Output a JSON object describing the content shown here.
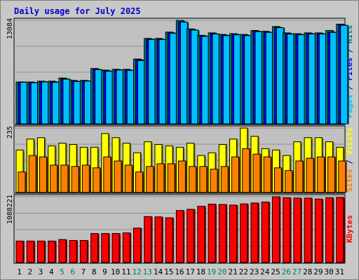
{
  "chart_data": {
    "type": "bar",
    "title": "Daily usage for July 2025",
    "categories": [
      "1",
      "2",
      "3",
      "4",
      "5",
      "6",
      "7",
      "8",
      "9",
      "10",
      "11",
      "12",
      "13",
      "14",
      "15",
      "16",
      "17",
      "18",
      "19",
      "20",
      "21",
      "22",
      "23",
      "24",
      "25",
      "26",
      "27",
      "28",
      "29",
      "30",
      "31"
    ],
    "weekend_days": [
      "5",
      "6",
      "12",
      "13",
      "19",
      "20",
      "26",
      "27"
    ],
    "panels": [
      {
        "id": "top",
        "ymax": 13084,
        "ymax_label": "13084",
        "ylabel_parts": [
          {
            "text": "Pages",
            "color": "#00c0ff"
          },
          {
            "text": " / ",
            "color": "#000080"
          },
          {
            "text": "Files",
            "color": "#0000ff"
          },
          {
            "text": " / ",
            "color": "#000080"
          },
          {
            "text": "Hits",
            "color": "#008080"
          }
        ],
        "series": [
          {
            "name": "Hits",
            "color": "#008080",
            "values": [
              5300,
              5300,
              5400,
              5400,
              5800,
              5500,
              5500,
              7000,
              6800,
              6900,
              6900,
              8200,
              10800,
              10800,
              11600,
              13084,
              12000,
              11200,
              11500,
              11300,
              11400,
              11300,
              11800,
              11700,
              12300,
              11500,
              11400,
              11500,
              11500,
              11800,
              12600
            ]
          },
          {
            "name": "Files",
            "color": "#0000ff",
            "values": [
              5300,
              5250,
              5350,
              5300,
              5700,
              5400,
              5450,
              6900,
              6700,
              6850,
              6800,
              8100,
              10700,
              10700,
              11500,
              12900,
              11900,
              11100,
              11400,
              11200,
              11300,
              11200,
              11700,
              11600,
              12200,
              11400,
              11300,
              11400,
              11400,
              11600,
              12500
            ]
          },
          {
            "name": "Pages",
            "color": "#00c0ff",
            "values": [
              5250,
              5200,
              5300,
              5250,
              5650,
              5350,
              5400,
              6850,
              6650,
              6800,
              6750,
              8000,
              10650,
              10650,
              11450,
              12850,
              11850,
              11050,
              11350,
              11150,
              11250,
              11150,
              11650,
              11550,
              12150,
              11350,
              11250,
              11350,
              11350,
              11550,
              12450
            ]
          }
        ]
      },
      {
        "id": "middle",
        "ymax": 235,
        "ymax_label": "235",
        "ylabel_parts": [
          {
            "text": "Sites",
            "color": "#ff8000"
          },
          {
            "text": " / ",
            "color": "#000080"
          },
          {
            "text": "Visits",
            "color": "#ffff00"
          }
        ],
        "series": [
          {
            "name": "Visits",
            "color": "#ffff00",
            "values": [
              155,
              195,
              200,
              170,
              180,
              175,
              165,
              165,
              215,
              200,
              180,
              145,
              185,
              175,
              170,
              165,
              180,
              135,
              145,
              175,
              195,
              235,
              205,
              160,
              155,
              135,
              185,
              200,
              200,
              185,
              165
            ]
          },
          {
            "name": "Sites",
            "color": "#ff8000",
            "values": [
              75,
              135,
              130,
              100,
              100,
              95,
              100,
              90,
              130,
              115,
              100,
              75,
              95,
              105,
              105,
              115,
              95,
              95,
              85,
              95,
              130,
              160,
              140,
              130,
              90,
              80,
              115,
              125,
              130,
              130,
              115
            ]
          }
        ]
      },
      {
        "id": "bottom",
        "ymax": 1088221,
        "ymax_label": "1088221",
        "ylabel_parts": [
          {
            "text": "KBytes",
            "color": "#ff0000"
          }
        ],
        "series": [
          {
            "name": "KBytes",
            "color": "#ff0000",
            "values": [
              355000,
              355000,
              355000,
              355000,
              380000,
              365000,
              365000,
              480000,
              480000,
              480000,
              490000,
              570000,
              760000,
              755000,
              740000,
              860000,
              880000,
              930000,
              965000,
              960000,
              950000,
              970000,
              985000,
              1000000,
              1088221,
              1070000,
              1065000,
              1065000,
              1050000,
              1070000,
              1075000
            ]
          }
        ]
      }
    ]
  },
  "colors": {
    "title": "#0000cc",
    "weekday_label": "#000000",
    "weekend_label": "#00805f",
    "plot_bg": "#c0c0c0",
    "frame_bg": "#c8c8c8"
  }
}
